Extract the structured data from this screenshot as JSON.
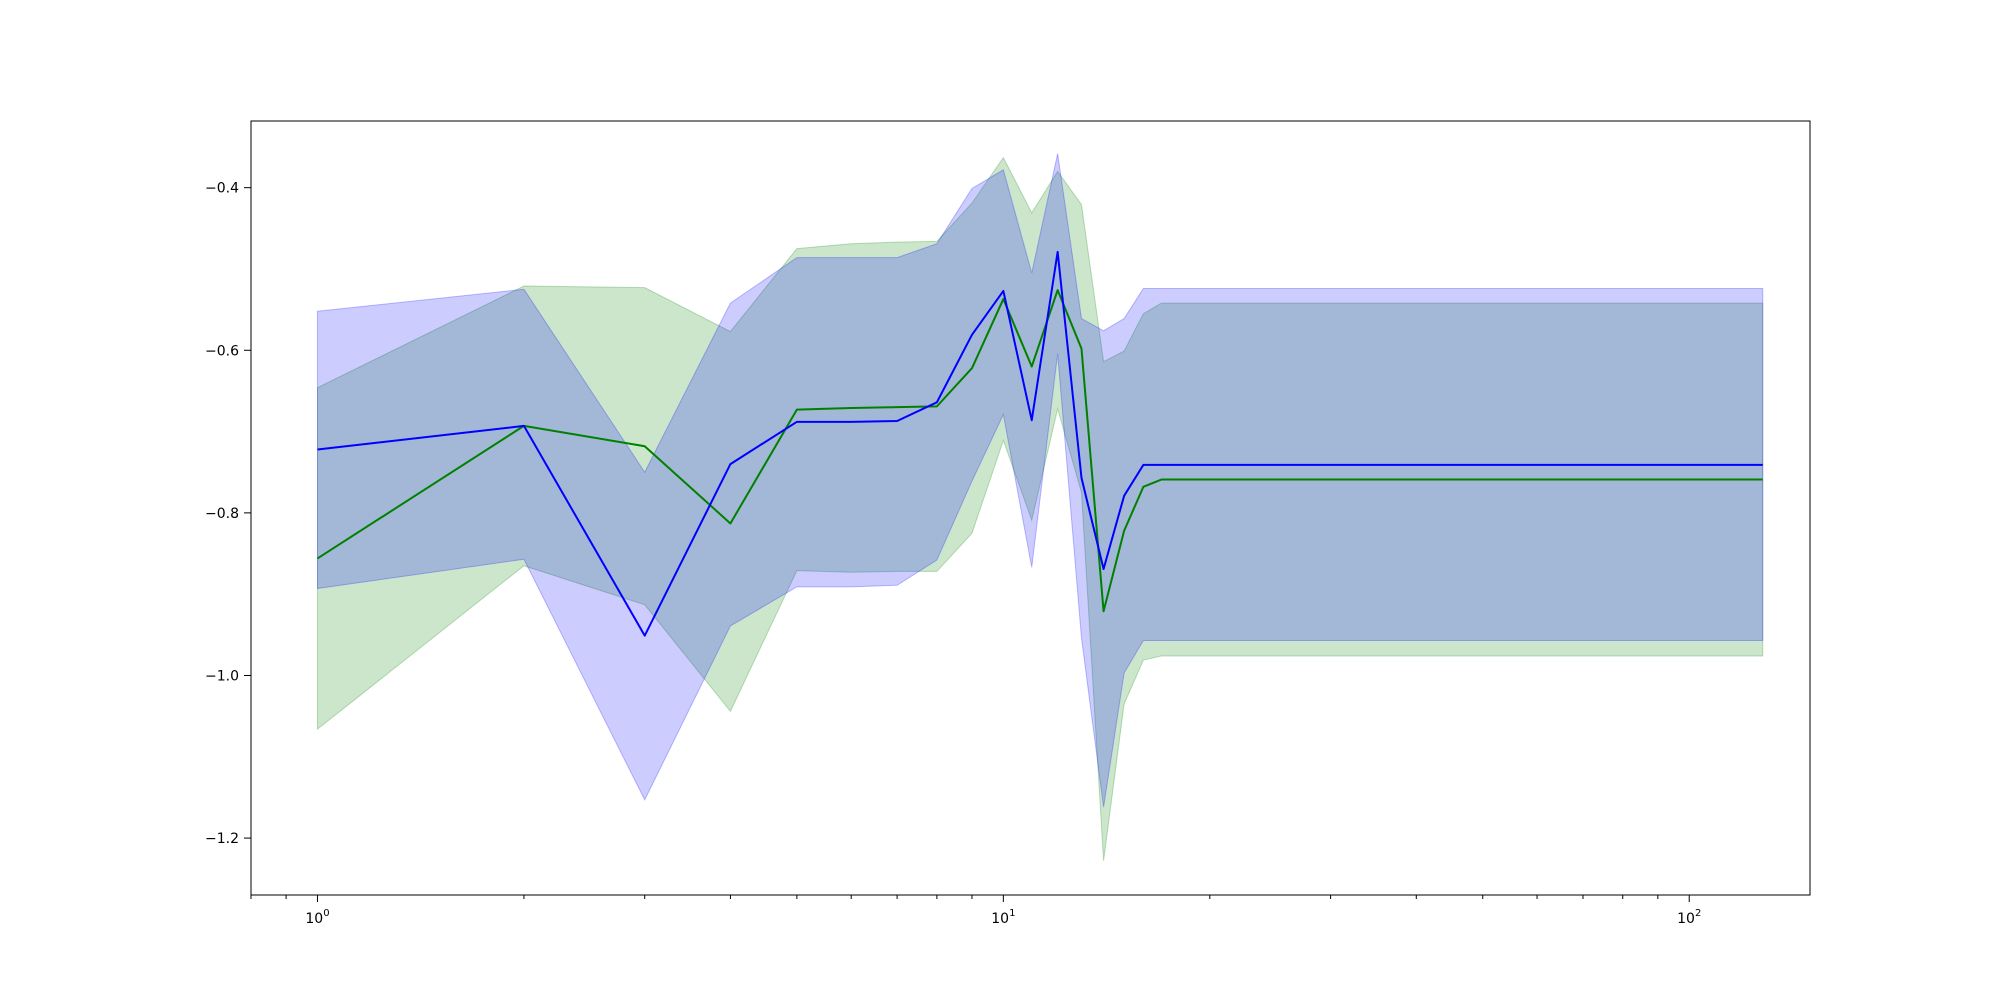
{
  "chart_data": {
    "type": "line",
    "title": "",
    "xlabel": "",
    "ylabel": "",
    "xscale": "log",
    "xlim": [
      0.8,
      150
    ],
    "ylim": [
      -1.27,
      -0.318
    ],
    "grid": false,
    "x_ticks": [
      {
        "value": 1,
        "label": "10",
        "exp": "0"
      },
      {
        "value": 10,
        "label": "10",
        "exp": "1"
      },
      {
        "value": 100,
        "label": "10",
        "exp": "2"
      }
    ],
    "y_ticks": [
      {
        "value": -0.4,
        "label": "−0.4"
      },
      {
        "value": -0.6,
        "label": "−0.6"
      },
      {
        "value": -0.8,
        "label": "−0.8"
      },
      {
        "value": -1.0,
        "label": "−1.0"
      },
      {
        "value": -1.2,
        "label": "−1.2"
      }
    ],
    "x": [
      1,
      2,
      3,
      4,
      5,
      6,
      7,
      8,
      9,
      10,
      11,
      12,
      13,
      14,
      15,
      16,
      17,
      128
    ],
    "series": [
      {
        "color": "#008000",
        "band_color": "#008000",
        "mean": [
          -0.856,
          -0.693,
          -0.718,
          -0.813,
          -0.673,
          -0.671,
          -0.67,
          -0.669,
          -0.622,
          -0.537,
          -0.62,
          -0.526,
          -0.598,
          -0.921,
          -0.822,
          -0.768,
          -0.759,
          -0.759
        ],
        "upper": [
          -0.646,
          -0.521,
          -0.523,
          -0.577,
          -0.475,
          -0.469,
          -0.467,
          -0.466,
          -0.419,
          -0.363,
          -0.431,
          -0.38,
          -0.421,
          -0.614,
          -0.601,
          -0.555,
          -0.542,
          -0.542
        ],
        "lower": [
          -1.066,
          -0.865,
          -0.913,
          -1.044,
          -0.871,
          -0.873,
          -0.872,
          -0.872,
          -0.825,
          -0.711,
          -0.809,
          -0.672,
          -0.775,
          -1.228,
          -1.035,
          -0.981,
          -0.976,
          -0.976
        ]
      },
      {
        "color": "#0000ff",
        "band_color": "#0000ff",
        "mean": [
          -0.722,
          -0.693,
          -0.951,
          -0.74,
          -0.688,
          -0.688,
          -0.687,
          -0.664,
          -0.581,
          -0.527,
          -0.686,
          -0.479,
          -0.757,
          -0.869,
          -0.779,
          -0.741,
          -0.741,
          -0.741
        ],
        "upper": [
          -0.552,
          -0.525,
          -0.75,
          -0.542,
          -0.486,
          -0.486,
          -0.486,
          -0.469,
          -0.401,
          -0.378,
          -0.505,
          -0.358,
          -0.561,
          -0.576,
          -0.561,
          -0.524,
          -0.524,
          -0.524
        ],
        "lower": [
          -0.893,
          -0.857,
          -1.153,
          -0.939,
          -0.891,
          -0.891,
          -0.889,
          -0.858,
          -0.761,
          -0.679,
          -0.867,
          -0.604,
          -0.954,
          -1.162,
          -0.997,
          -0.957,
          -0.957,
          -0.957
        ]
      }
    ]
  }
}
